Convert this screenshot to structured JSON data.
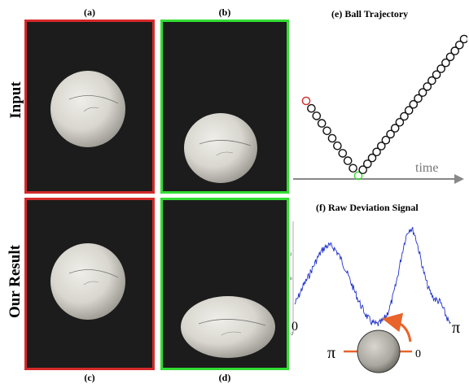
{
  "panels": {
    "a": "(a)",
    "b": "(b)",
    "c": "(c)",
    "d": "(d)",
    "e": "(e)  Ball Trajectory",
    "f": "(f)  Raw Deviation Signal"
  },
  "rows": {
    "input": "Input",
    "result": "Our Result"
  },
  "colors": {
    "red_frame": "#d42a2a",
    "green_frame": "#33dd33",
    "signal": "#2233cc",
    "axis": "#888888",
    "arrow": "#e8642a"
  },
  "trajectory": {
    "time_label": "time",
    "points": 34,
    "highlight_start": "red",
    "highlight_min": "green"
  },
  "signal": {
    "y_ticks": [
      "2",
      "0",
      "-2"
    ],
    "left_label": "0",
    "right_label": "π",
    "dial_left": "π",
    "dial_right": "0"
  }
}
